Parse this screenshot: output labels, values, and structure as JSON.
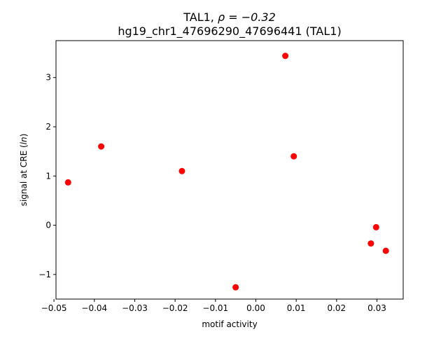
{
  "chart_data": {
    "type": "scatter",
    "title_line1_prefix": "TAL1, ",
    "title_line1_stat": "ρ = −0.32",
    "title_line2": "hg19_chr1_47696290_47696441 (TAL1)",
    "xlabel": "motif activity",
    "ylabel_prefix": "signal at CRE (",
    "ylabel_italic": "ln",
    "ylabel_suffix": ")",
    "xlim": [
      -0.0495,
      0.0365
    ],
    "ylim": [
      -1.5,
      3.75
    ],
    "xticks": [
      {
        "value": -0.05,
        "label": "−0.05"
      },
      {
        "value": -0.04,
        "label": "−0.04"
      },
      {
        "value": -0.03,
        "label": "−0.03"
      },
      {
        "value": -0.02,
        "label": "−0.02"
      },
      {
        "value": -0.01,
        "label": "−0.01"
      },
      {
        "value": 0.0,
        "label": "0.00"
      },
      {
        "value": 0.01,
        "label": "0.01"
      },
      {
        "value": 0.02,
        "label": "0.02"
      },
      {
        "value": 0.03,
        "label": "0.03"
      }
    ],
    "yticks": [
      {
        "value": -1,
        "label": "−1"
      },
      {
        "value": 0,
        "label": "0"
      },
      {
        "value": 1,
        "label": "1"
      },
      {
        "value": 2,
        "label": "2"
      },
      {
        "value": 3,
        "label": "3"
      }
    ],
    "marker_color": "#ff0000",
    "grid": false,
    "points": [
      {
        "x": -0.0465,
        "y": 0.87
      },
      {
        "x": -0.0383,
        "y": 1.6
      },
      {
        "x": -0.0183,
        "y": 1.1
      },
      {
        "x": -0.005,
        "y": -1.26
      },
      {
        "x": 0.0073,
        "y": 3.44
      },
      {
        "x": 0.0094,
        "y": 1.4
      },
      {
        "x": 0.0285,
        "y": -0.37
      },
      {
        "x": 0.0298,
        "y": -0.04
      },
      {
        "x": 0.0322,
        "y": -0.52
      }
    ]
  }
}
